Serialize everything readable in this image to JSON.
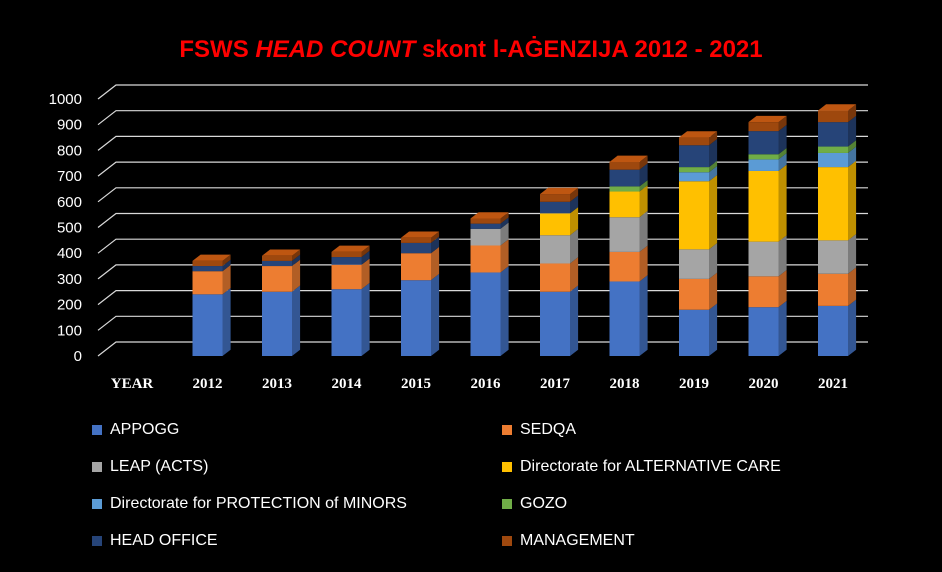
{
  "chart_data": {
    "type": "bar",
    "stacked": true,
    "title_parts": [
      "FSWS ",
      "HEAD COUNT",
      " skont l-AĠENZIJA 2012 - 2021"
    ],
    "x_axis_label": "YEAR",
    "categories": [
      "2012",
      "2013",
      "2014",
      "2015",
      "2016",
      "2017",
      "2018",
      "2019",
      "2020",
      "2021"
    ],
    "yticks": [
      "0",
      "100",
      "200",
      "300",
      "400",
      "500",
      "600",
      "700",
      "800",
      "900",
      "1000"
    ],
    "ylim": [
      0,
      1000
    ],
    "grid": true,
    "legend_position": "bottom",
    "series": [
      {
        "name": "APPOGG",
        "color": "#4472c4",
        "values": [
          240,
          250,
          260,
          295,
          325,
          250,
          290,
          180,
          190,
          195
        ]
      },
      {
        "name": "SEDQA",
        "color": "#ed7d31",
        "values": [
          90,
          100,
          95,
          105,
          105,
          110,
          115,
          120,
          120,
          125
        ]
      },
      {
        "name": "LEAP (ACTS)",
        "color": "#a5a5a5",
        "values": [
          0,
          0,
          0,
          0,
          65,
          110,
          135,
          115,
          135,
          130
        ]
      },
      {
        "name": "Directorate for ALTERNATIVE  CARE",
        "color": "#ffc000",
        "values": [
          0,
          0,
          0,
          0,
          0,
          85,
          100,
          265,
          275,
          285
        ]
      },
      {
        "name": "Directorate for PROTECTION of MINORS",
        "color": "#5b9bd5",
        "values": [
          0,
          0,
          0,
          0,
          0,
          0,
          0,
          35,
          45,
          55
        ]
      },
      {
        "name": "GOZO",
        "color": "#70ad47",
        "values": [
          0,
          0,
          0,
          0,
          0,
          0,
          20,
          20,
          20,
          25
        ]
      },
      {
        "name": "HEAD OFFICE",
        "color": "#264478",
        "values": [
          20,
          20,
          30,
          40,
          20,
          45,
          65,
          85,
          90,
          95
        ]
      },
      {
        "name": "MANAGEMENT",
        "color": "#9e480e",
        "values": [
          20,
          20,
          20,
          20,
          20,
          30,
          30,
          30,
          35,
          45
        ]
      }
    ]
  }
}
